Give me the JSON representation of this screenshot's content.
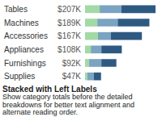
{
  "chart_data": {
    "type": "bar",
    "orientation": "horizontal",
    "stacked": true,
    "title": "Stacked with Left Labels",
    "subtitle": "Show category totals before the detailed breakdowns for better text alignment and alternate reading order.",
    "categories": [
      "Tables",
      "Machines",
      "Accessories",
      "Appliances",
      "Furnishings",
      "Supplies"
    ],
    "total_labels": [
      "$207K",
      "$189K",
      "$167K",
      "$108K",
      "$92K",
      "$47K"
    ],
    "series": [
      {
        "color": "#a3d9a5",
        "values": [
          43,
          36,
          38,
          17,
          12,
          7
        ]
      },
      {
        "color": "#7ba3c2",
        "values": [
          64,
          60,
          38,
          31,
          36,
          19
        ]
      },
      {
        "color": "#2e5a82",
        "values": [
          100,
          93,
          91,
          60,
          44,
          21
        ]
      }
    ],
    "xlim": [
      0,
      207
    ],
    "tick_labels": "y",
    "grid": false
  }
}
